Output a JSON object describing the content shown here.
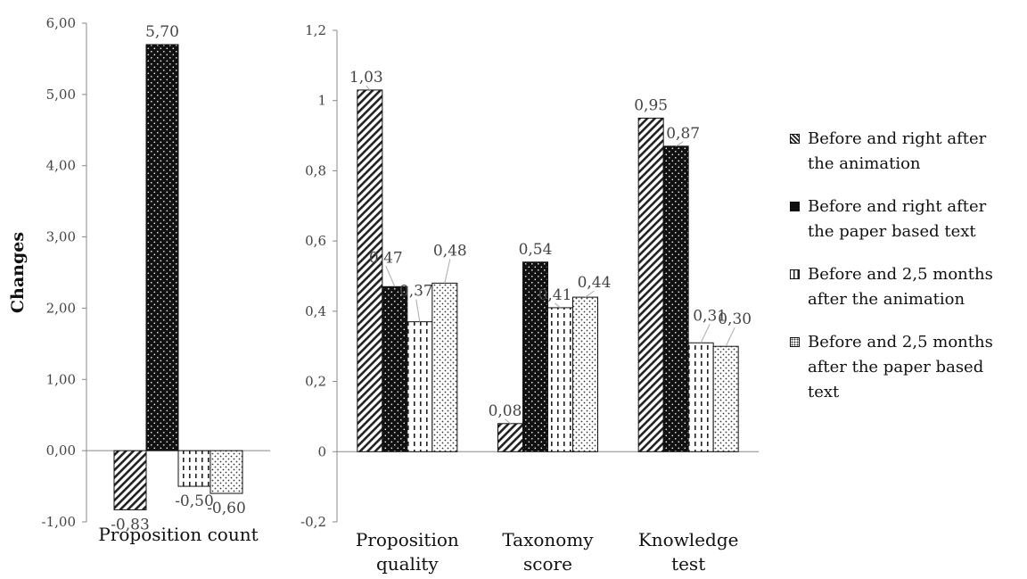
{
  "legend_items": [
    {
      "label": "Before and right after\nthe animation",
      "pattern": "diagonal-hatch"
    },
    {
      "label": "Before and right after\nthe paper based text",
      "pattern": "solid-dotted"
    },
    {
      "label": "Before and 2,5 months\nafter the animation",
      "pattern": "vertical-dashed"
    },
    {
      "label": "Before and 2,5 months\nafter the paper based\ntext",
      "pattern": "stippled"
    }
  ],
  "colors": {
    "bar_stroke": "#111111",
    "axis": "#888888",
    "leader": "#aaaaaa",
    "dark_fill": "#111111"
  },
  "chart_data": [
    {
      "type": "bar",
      "ylabel": "Changes",
      "ylim": [
        -1,
        6
      ],
      "yticks": [
        "-1,00",
        "0,00",
        "1,00",
        "2,00",
        "3,00",
        "4,00",
        "5,00",
        "6,00"
      ],
      "categories": [
        "Proposition count"
      ],
      "series": [
        {
          "name": "Before and right after the animation",
          "values": [
            -0.83
          ],
          "labels": [
            "-0,83"
          ]
        },
        {
          "name": "Before and right after the paper based text",
          "values": [
            5.7
          ],
          "labels": [
            "5,70"
          ]
        },
        {
          "name": "Before and 2,5 months after the animation",
          "values": [
            -0.5
          ],
          "labels": [
            "-0,50"
          ]
        },
        {
          "name": "Before and 2,5 months after the paper based text",
          "values": [
            -0.6
          ],
          "labels": [
            "-0,60"
          ]
        }
      ]
    },
    {
      "type": "bar",
      "ylim": [
        -0.2,
        1.2
      ],
      "yticks": [
        "-0,2",
        "0",
        "0,2",
        "0,4",
        "0,6",
        "0,8",
        "1",
        "1,2"
      ],
      "categories": [
        "Proposition\nquality",
        "Taxonomy\nscore",
        "Knowledge\ntest"
      ],
      "series": [
        {
          "name": "Before and right after the animation",
          "values": [
            1.03,
            0.08,
            0.95
          ],
          "labels": [
            "1,03",
            "0,08",
            "0,95"
          ]
        },
        {
          "name": "Before and right after the paper based text",
          "values": [
            0.47,
            0.54,
            0.87
          ],
          "labels": [
            "0,47",
            "0,54",
            "0,87"
          ]
        },
        {
          "name": "Before and 2,5 months after the animation",
          "values": [
            0.37,
            0.41,
            0.31
          ],
          "labels": [
            "0,37",
            "0,41",
            "0,31"
          ]
        },
        {
          "name": "Before and 2,5 months after the paper based text",
          "values": [
            0.48,
            0.44,
            0.3
          ],
          "labels": [
            "0,48",
            "0,44",
            "0,30"
          ]
        }
      ]
    }
  ]
}
